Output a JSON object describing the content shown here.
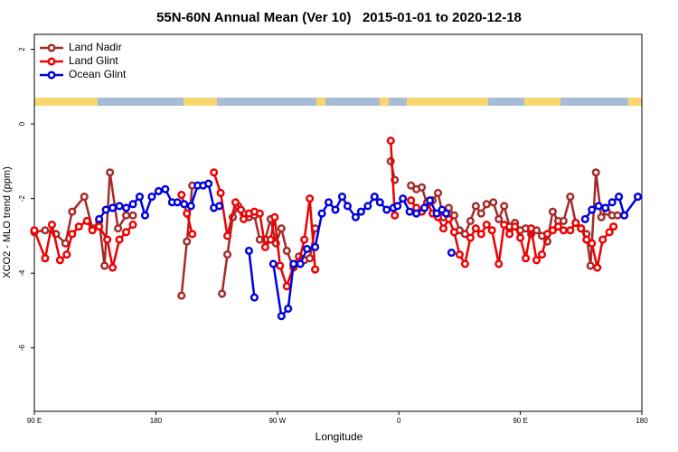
{
  "chart_data": {
    "type": "line",
    "title": "55N-60N Annual Mean (Ver 10)   2015-01-01 to 2020-12-18",
    "x_label": "Longitude",
    "y_label": "XCO2 - MLO trend (ppm)",
    "xlim": [
      90,
      540
    ],
    "ylim": [
      -7.7,
      2.4
    ],
    "xticks": [
      {
        "value": 90,
        "label": "90 E"
      },
      {
        "value": 180,
        "label": "180"
      },
      {
        "value": 270,
        "label": "90 W"
      },
      {
        "value": 360,
        "label": "0"
      },
      {
        "value": 450,
        "label": "90 E"
      },
      {
        "value": 540,
        "label": "180"
      }
    ],
    "yticks": [
      -6,
      -4,
      -2,
      0,
      2
    ],
    "legend": "top-left",
    "series": [
      {
        "name": "Land Nadir",
        "color": "#a52a2a",
        "x": [
          90,
          98,
          106,
          113,
          118,
          127,
          133,
          138,
          142,
          146,
          152,
          158,
          163,
          null,
          199,
          203,
          207,
          null,
          229,
          233,
          237,
          241,
          245,
          249,
          253,
          257,
          261,
          265,
          269,
          273,
          277,
          282,
          286,
          290,
          294,
          298,
          null,
          354,
          357,
          null,
          369,
          373,
          377,
          381,
          385,
          389,
          393,
          397,
          401,
          405,
          409,
          413,
          417,
          421,
          425,
          430,
          434,
          438,
          442,
          446,
          450,
          454,
          458,
          462,
          466,
          470,
          474,
          478,
          482,
          487,
          491,
          495,
          499,
          502,
          506,
          510,
          514,
          518,
          522
        ],
        "values": [
          -2.9,
          -2.85,
          -2.95,
          -3.2,
          -2.35,
          -1.95,
          -2.8,
          -2.6,
          -3.8,
          -1.3,
          -2.8,
          -2.45,
          -2.45,
          null,
          -4.6,
          -3.15,
          -1.65,
          null,
          -4.55,
          -3.5,
          -2.5,
          -2.2,
          -2.4,
          -2.5,
          -2.45,
          -3.1,
          -3.1,
          -2.55,
          -3.2,
          -2.8,
          -3.4,
          -3.85,
          -3.55,
          -3.65,
          -3.6,
          -2.8,
          null,
          -1.0,
          -1.5,
          null,
          -1.65,
          -1.75,
          -1.7,
          -2.15,
          -2.05,
          -1.85,
          -2.5,
          -2.25,
          -2.45,
          -2.85,
          -2.95,
          -2.6,
          -2.2,
          -2.4,
          -2.15,
          -2.1,
          -2.55,
          -2.2,
          -2.75,
          -2.65,
          -2.85,
          -2.8,
          -2.95,
          -2.85,
          -3.0,
          -3.15,
          -2.35,
          -2.6,
          -2.6,
          -1.95,
          -2.65,
          -2.8,
          -2.95,
          -3.8,
          -1.3,
          -2.5,
          -2.35,
          -2.45,
          -2.45
        ]
      },
      {
        "name": "Land Glint",
        "color": "#ee0000",
        "x": [
          90,
          98,
          103,
          109,
          114,
          118,
          123,
          129,
          133,
          138,
          144,
          148,
          153,
          158,
          163,
          null,
          199,
          203,
          207,
          null,
          223,
          228,
          233,
          239,
          243,
          245,
          249,
          253,
          257,
          261,
          265,
          268,
          272,
          277,
          282,
          286,
          290,
          294,
          298,
          null,
          354,
          357,
          null,
          369,
          373,
          377,
          381,
          385,
          389,
          393,
          397,
          401,
          405,
          409,
          413,
          417,
          421,
          425,
          429,
          434,
          438,
          442,
          446,
          450,
          454,
          458,
          462,
          466,
          470,
          474,
          478,
          482,
          487,
          491,
          495,
          499,
          503,
          507,
          511,
          516,
          519
        ],
        "values": [
          -2.85,
          -3.6,
          -2.7,
          -3.65,
          -3.5,
          -2.95,
          -2.75,
          -2.6,
          -2.85,
          -2.75,
          -3.1,
          -3.85,
          -3.1,
          -2.9,
          -2.7,
          null,
          -1.9,
          -2.4,
          -2.95,
          null,
          -1.3,
          -1.85,
          -3.0,
          -2.1,
          -2.3,
          -2.55,
          -2.4,
          -2.35,
          -2.4,
          -3.3,
          -3.1,
          -2.5,
          -3.8,
          -4.35,
          -3.8,
          -3.7,
          -3.1,
          -2.0,
          -3.9,
          null,
          -0.45,
          -2.45,
          null,
          -2.05,
          -2.25,
          -2.35,
          -2.1,
          -2.4,
          -2.5,
          -2.8,
          -2.55,
          -2.9,
          -3.5,
          -3.75,
          -3.05,
          -2.8,
          -2.95,
          -2.7,
          -2.85,
          -3.75,
          -2.7,
          -2.95,
          -2.75,
          -3.05,
          -3.6,
          -2.8,
          -3.65,
          -3.5,
          -2.95,
          -2.85,
          -2.75,
          -2.85,
          -2.85,
          -2.65,
          -2.8,
          -3.1,
          -3.2,
          -3.85,
          -3.1,
          -2.9,
          -2.75
        ]
      },
      {
        "name": "Ocean Glint",
        "color": "#0000dd",
        "x": [
          138,
          143,
          148,
          153,
          158,
          163,
          168,
          172,
          177,
          182,
          187,
          192,
          196,
          201,
          206,
          211,
          215,
          219,
          223,
          227,
          null,
          249,
          253,
          null,
          267,
          273,
          278,
          282,
          287,
          292,
          298,
          303,
          308,
          313,
          318,
          322,
          328,
          332,
          337,
          342,
          346,
          351,
          356,
          359,
          363,
          368,
          373,
          379,
          383,
          388,
          392,
          395,
          null,
          399,
          null,
          498,
          503,
          508,
          513,
          518,
          523,
          527,
          537
        ],
        "values": [
          -2.55,
          -2.3,
          -2.25,
          -2.2,
          -2.25,
          -2.15,
          -1.95,
          -2.45,
          -1.95,
          -1.8,
          -1.75,
          -2.1,
          -2.1,
          -2.15,
          -2.2,
          -1.65,
          -1.65,
          -1.6,
          -2.25,
          -2.2,
          null,
          -3.4,
          -4.65,
          null,
          -3.75,
          -5.15,
          -4.95,
          -3.75,
          -3.75,
          -3.35,
          -3.3,
          -2.4,
          -2.1,
          -2.3,
          -1.95,
          -2.2,
          -2.5,
          -2.35,
          -2.2,
          -1.95,
          -2.1,
          -2.3,
          -2.25,
          -2.2,
          -2.0,
          -2.35,
          -2.4,
          -2.25,
          -2.05,
          -2.4,
          -2.3,
          -2.4,
          null,
          -3.45,
          null,
          -2.55,
          -2.3,
          -2.2,
          -2.25,
          -2.1,
          -1.95,
          -2.45,
          -1.95
        ]
      }
    ]
  }
}
